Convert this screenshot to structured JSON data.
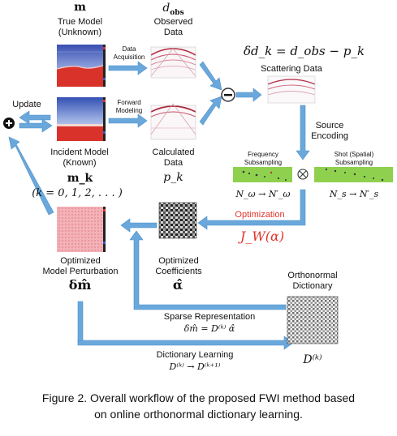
{
  "labels": {
    "true_model_symbol": "m",
    "true_model_name": "True Model",
    "true_model_state": "(Unknown)",
    "observed_symbol": "d",
    "observed_sub": "obs",
    "observed_name1": "Observed",
    "observed_name2": "Data",
    "data_acquisition1": "Data",
    "data_acquisition2": "Acquisition",
    "forward_modeling1": "Forward",
    "forward_modeling2": "Modeling",
    "scattering_formula": "δd_k = d_obs − p_k",
    "scattering_data": "Scattering Data",
    "source_encoding1": "Source",
    "source_encoding2": "Encoding",
    "update": "Update",
    "incident_model1": "Incident Model",
    "incident_model2": "(Known)",
    "calculated1": "Calculated",
    "calculated2": "Data",
    "calculated_symbol": "p_k",
    "frequency_subsampling1": "Frequency",
    "frequency_subsampling2": "Subsampling",
    "shot_subsampling1": "Shot (Spatial)",
    "shot_subsampling2": "Subsampling",
    "freq_map": "N_ω → N′_ω",
    "shot_map": "N_s → N′_s",
    "model_iter_symbol": "m_k",
    "iteration_range": "(k = 0, 1, 2, . . . )",
    "optimization": "Optimization",
    "objective": "J_W(α)",
    "optimized_coeff1": "Optimized",
    "optimized_coeff2": "Coefficients",
    "alpha_hat": "α̂",
    "opt_model_pert1": "Optimized",
    "opt_model_pert2": "Model Perturbation",
    "delta_m_hat": "δm̂",
    "ortho_dict1": "Orthonormal",
    "ortho_dict2": "Dictionary",
    "sparse_representation": "Sparse Representation",
    "sparse_formula": "δm̂ = D⁽ᵏ⁾ α̂",
    "dictionary_learning": "Dictionary Learning",
    "dict_update": "D⁽ᵏ⁾ → D⁽ᵏ⁺¹⁾",
    "dict_symbol": "D⁽ᵏ⁾",
    "minus": "−",
    "plus": "+",
    "times": "⊗"
  },
  "caption_line1": "Figure 2. Overall workflow of the proposed FWI method based",
  "caption_line2": "on online orthonormal dictionary learning.",
  "colors": {
    "arrow": "#6aa8dc",
    "arrow_edge": "#4d8fc9",
    "red_text": "#e2332b",
    "green_strip": "#8fd14f",
    "model_blue": "#3a58b8",
    "model_red": "#d9322b"
  }
}
